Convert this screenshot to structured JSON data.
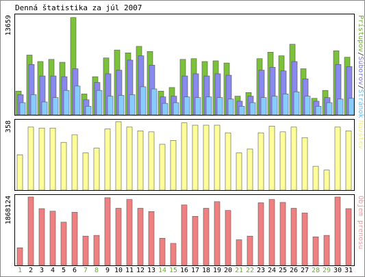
{
  "chart_data": {
    "type": "bar",
    "title": "Denná štatistika za júl 2007",
    "categories": [
      "1",
      "2",
      "3",
      "4",
      "5",
      "6",
      "7",
      "8",
      "9",
      "10",
      "11",
      "12",
      "13",
      "14",
      "15",
      "16",
      "17",
      "18",
      "19",
      "20",
      "21",
      "22",
      "23",
      "24",
      "25",
      "26",
      "27",
      "28",
      "29",
      "30",
      "31"
    ],
    "weekend_categories": [
      "1",
      "7",
      "8",
      "14",
      "15",
      "21",
      "22",
      "28",
      "29"
    ],
    "panels": [
      {
        "ylabel_parts": [
          {
            "text": "Prístupov",
            "color": "#6aaf2a"
          },
          {
            "text": "/",
            "color": "#222222"
          },
          {
            "text": "Súborov",
            "color": "#7777dd"
          },
          {
            "text": "/",
            "color": "#222222"
          },
          {
            "text": "Stránok",
            "color": "#66bbee"
          }
        ],
        "ymax_label": "13659",
        "ylim": [
          0,
          13659
        ],
        "series": [
          {
            "name": "Prístupov",
            "color": "#7cc13a",
            "values": [
              3300,
              8300,
              7400,
              7700,
              7300,
              13500,
              2900,
              5300,
              7900,
              9000,
              8600,
              9500,
              8800,
              3300,
              3800,
              7700,
              7800,
              7400,
              7500,
              7200,
              2600,
              3100,
              7800,
              8700,
              8200,
              9800,
              6400,
              2300,
              3400,
              8900,
              8000
            ]
          },
          {
            "name": "Súborov",
            "color": "#8888ee",
            "values": [
              2800,
              7000,
              5400,
              5400,
              5300,
              6400,
              2100,
              4500,
              5700,
              6200,
              7600,
              8200,
              6900,
              2500,
              2600,
              5400,
              5700,
              5400,
              5700,
              5500,
              1900,
              2600,
              6200,
              6600,
              6100,
              7400,
              5000,
              1900,
              2400,
              7000,
              6700
            ]
          },
          {
            "name": "Stránok",
            "color": "#88ccff",
            "values": [
              1700,
              2800,
              1800,
              2400,
              3400,
              4000,
              1200,
              3400,
              2600,
              2700,
              2800,
              3900,
              3600,
              1600,
              1700,
              2500,
              2400,
              2500,
              2400,
              2200,
              1200,
              1700,
              2400,
              2600,
              2900,
              3200,
              2600,
              1200,
              1700,
              2200,
              2300
            ]
          }
        ]
      },
      {
        "ylabel": "Návštev",
        "ylabel_color": "#eeee88",
        "ymax_label": "358",
        "ylim": [
          0,
          358
        ],
        "series": [
          {
            "name": "Návštev",
            "color": "#ffff99",
            "values": [
              185,
              330,
              325,
              325,
              250,
              290,
              195,
              220,
              320,
              358,
              330,
              310,
              305,
              240,
              260,
              352,
              340,
              340,
              340,
              300,
              195,
              215,
              300,
              335,
              305,
              330,
              275,
              125,
              105,
              330,
              310
            ]
          }
        ]
      },
      {
        "ylabel": "Objem prenosu",
        "ylabel_color": "#ee9999",
        "ymax_label": "1868124",
        "ylim": [
          0,
          1868124
        ],
        "series": [
          {
            "name": "Objem prenosu",
            "color": "#f08080",
            "values": [
              480000,
              1868124,
              1550000,
              1480000,
              1180000,
              1450000,
              800000,
              820000,
              1850000,
              1560000,
              1800000,
              1560000,
              1470000,
              740000,
              600000,
              1650000,
              1340000,
              1560000,
              1740000,
              1500000,
              700000,
              800000,
              1710000,
              1800000,
              1720000,
              1560000,
              1430000,
              780000,
              820000,
              1868124,
              1550000
            ]
          }
        ]
      }
    ],
    "grid": false,
    "legend": "right-vertical"
  }
}
